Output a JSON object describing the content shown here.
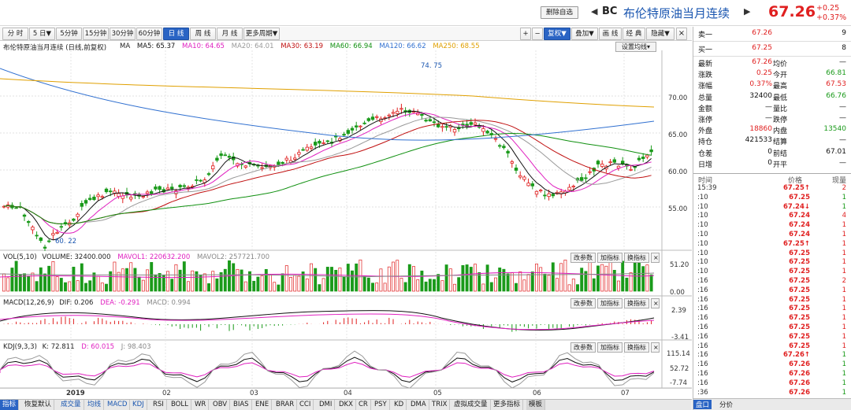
{
  "header": {
    "delete_btn": "删除自选",
    "nav_left": "◀",
    "code": "BC",
    "name": "布伦特原油当月连续",
    "nav_right": "▶",
    "price": "67.26",
    "change": "+0.25",
    "change_pct": "+0.37%"
  },
  "toolbar": {
    "periods": [
      "分 时",
      "5 日▼",
      "5分钟",
      "15分钟",
      "30分钟",
      "60分钟",
      "日 线",
      "周 线",
      "月 线",
      "更多周期▼"
    ],
    "active_period": "日 线",
    "right_buttons": [
      "+",
      "−",
      "复权▼",
      "叠加▼",
      "画 线",
      "经 典",
      "隐藏▼"
    ]
  },
  "main_panel": {
    "title": "布伦特原油当月连续 (日线,前复权)",
    "settings_btn": "设置均线▾",
    "ma": [
      {
        "label": "MA",
        "color": "#222"
      },
      {
        "label": "MA5: 65.37",
        "color": "#111"
      },
      {
        "label": "MA10: 64.65",
        "color": "#e020c0"
      },
      {
        "label": "MA20: 64.01",
        "color": "#999999"
      },
      {
        "label": "MA30: 63.19",
        "color": "#c01010"
      },
      {
        "label": "MA60: 66.94",
        "color": "#109010"
      },
      {
        "label": "MA120: 66.62",
        "color": "#3070d0"
      },
      {
        "label": "MA250: 68.55",
        "color": "#e0a000"
      }
    ],
    "high_label": "74. 75",
    "low_label": "60. 22",
    "y_labels": [
      "70.00",
      "65.00",
      "60.00",
      "55.00"
    ]
  },
  "vol_panel": {
    "title": "VOL(5,10)",
    "volume": "VOLUME: 32400.000",
    "mavol1": "MAVOL1: 220632.200",
    "mavol2": "MAVOL2: 257721.700",
    "buttons": [
      "改参数",
      "加指标",
      "换指标"
    ],
    "y_labels": [
      "51.20",
      "0.00"
    ]
  },
  "macd_panel": {
    "title": "MACD(12,26,9)",
    "dif": "DIF: 0.206",
    "dea": "DEA: -0.291",
    "macd": "MACD: 0.994",
    "buttons": [
      "改参数",
      "加指标",
      "换指标"
    ],
    "y_labels": [
      "2.39",
      "-3.41"
    ]
  },
  "kdj_panel": {
    "title": "KDJ(9,3,3)",
    "k": "K: 72.811",
    "d": "D: 60.015",
    "j": "J: 98.403",
    "buttons": [
      "改参数",
      "加指标",
      "换指标"
    ],
    "y_labels": [
      "115.14",
      "52.72",
      "-7.74"
    ]
  },
  "x_axis": [
    "2019",
    "02",
    "03",
    "04",
    "05",
    "06",
    "07"
  ],
  "bottom_tabs": [
    "指标",
    "恢复默认",
    "成交量",
    "均线",
    "MACD",
    "KDJ",
    "RSI",
    "BOLL",
    "WR",
    "OBV",
    "BIAS",
    "ENE",
    "BRAR",
    "CCI",
    "DMI",
    "DKX",
    "CR",
    "PSY",
    "KD",
    "DMA",
    "TRIX",
    "虚拟成交量",
    "更多指标",
    "模板"
  ],
  "orderbook": [
    {
      "label": "卖一",
      "price": "67.26",
      "qty": "9"
    },
    {
      "label": "买一",
      "price": "67.25",
      "qty": "8"
    }
  ],
  "quote": [
    {
      "l1": "最新",
      "v1": "67.26",
      "c1": "red",
      "l2": "均价",
      "v2": "—",
      "c2": "blk"
    },
    {
      "l1": "涨跌",
      "v1": "0.25",
      "c1": "red",
      "l2": "今开",
      "v2": "66.81",
      "c2": "green"
    },
    {
      "l1": "涨幅",
      "v1": "0.37%",
      "c1": "red",
      "l2": "最高",
      "v2": "67.53",
      "c2": "red"
    },
    {
      "l1": "总量",
      "v1": "32400",
      "c1": "blk",
      "l2": "最低",
      "v2": "66.76",
      "c2": "green"
    },
    {
      "l1": "金额",
      "v1": "—",
      "c1": "blk",
      "l2": "量比",
      "v2": "—",
      "c2": "blk"
    },
    {
      "l1": "涨停",
      "v1": "—",
      "c1": "blk",
      "l2": "跌停",
      "v2": "—",
      "c2": "blk"
    },
    {
      "l1": "外盘",
      "v1": "18860",
      "c1": "red",
      "l2": "内盘",
      "v2": "13540",
      "c2": "green"
    },
    {
      "l1": "持仓",
      "v1": "421533",
      "c1": "blk",
      "l2": "结算",
      "v2": "—",
      "c2": "blk"
    },
    {
      "l1": "仓差",
      "v1": "0",
      "c1": "blk",
      "l2": "前结",
      "v2": "67.01",
      "c2": "blk"
    },
    {
      "l1": "日增",
      "v1": "0",
      "c1": "blk",
      "l2": "开平",
      "v2": "—",
      "c2": "blk"
    }
  ],
  "ticks_header": {
    "time": "时间",
    "price": "价格",
    "qty": "现量"
  },
  "ticks": [
    {
      "t": "15:39",
      "p": "67.25",
      "a": "↑",
      "q": "2",
      "pc": "red",
      "qc": "red"
    },
    {
      "t": ":10",
      "p": "67.25",
      "a": "",
      "q": "1",
      "pc": "red",
      "qc": "green"
    },
    {
      "t": ":10",
      "p": "67.24",
      "a": "↓",
      "q": "1",
      "pc": "red",
      "qc": "green"
    },
    {
      "t": ":10",
      "p": "67.24",
      "a": "",
      "q": "4",
      "pc": "red",
      "qc": "red"
    },
    {
      "t": ":10",
      "p": "67.24",
      "a": "",
      "q": "1",
      "pc": "red",
      "qc": "red"
    },
    {
      "t": ":10",
      "p": "67.24",
      "a": "",
      "q": "1",
      "pc": "red",
      "qc": "red"
    },
    {
      "t": ":10",
      "p": "67.25",
      "a": "↑",
      "q": "1",
      "pc": "red",
      "qc": "red"
    },
    {
      "t": ":10",
      "p": "67.25",
      "a": "",
      "q": "1",
      "pc": "red",
      "qc": "red"
    },
    {
      "t": ":10",
      "p": "67.25",
      "a": "",
      "q": "1",
      "pc": "red",
      "qc": "red"
    },
    {
      "t": ":10",
      "p": "67.25",
      "a": "",
      "q": "1",
      "pc": "red",
      "qc": "red"
    },
    {
      "t": ":16",
      "p": "67.25",
      "a": "",
      "q": "2",
      "pc": "red",
      "qc": "red"
    },
    {
      "t": ":16",
      "p": "67.25",
      "a": "",
      "q": "1",
      "pc": "red",
      "qc": "red"
    },
    {
      "t": ":16",
      "p": "67.25",
      "a": "",
      "q": "1",
      "pc": "red",
      "qc": "red"
    },
    {
      "t": ":16",
      "p": "67.25",
      "a": "",
      "q": "1",
      "pc": "red",
      "qc": "red"
    },
    {
      "t": ":16",
      "p": "67.25",
      "a": "",
      "q": "1",
      "pc": "red",
      "qc": "red"
    },
    {
      "t": ":16",
      "p": "67.25",
      "a": "",
      "q": "1",
      "pc": "red",
      "qc": "red"
    },
    {
      "t": ":16",
      "p": "67.25",
      "a": "",
      "q": "1",
      "pc": "red",
      "qc": "red"
    },
    {
      "t": ":16",
      "p": "67.25",
      "a": "",
      "q": "1",
      "pc": "red",
      "qc": "red"
    },
    {
      "t": ":16",
      "p": "67.26",
      "a": "↑",
      "q": "1",
      "pc": "red",
      "qc": "green"
    },
    {
      "t": ":16",
      "p": "67.26",
      "a": "",
      "q": "1",
      "pc": "red",
      "qc": "green"
    },
    {
      "t": ":16",
      "p": "67.26",
      "a": "",
      "q": "1",
      "pc": "red",
      "qc": "green"
    },
    {
      "t": ":16",
      "p": "67.26",
      "a": "",
      "q": "1",
      "pc": "red",
      "qc": "green"
    },
    {
      "t": ":36",
      "p": "67.26",
      "a": "",
      "q": "1",
      "pc": "red",
      "qc": "green"
    }
  ],
  "right_bottom_tabs": [
    "盘口",
    "分价"
  ],
  "colors": {
    "up": "#e02020",
    "down": "#1a9a1a",
    "accent": "#2a64c4"
  }
}
